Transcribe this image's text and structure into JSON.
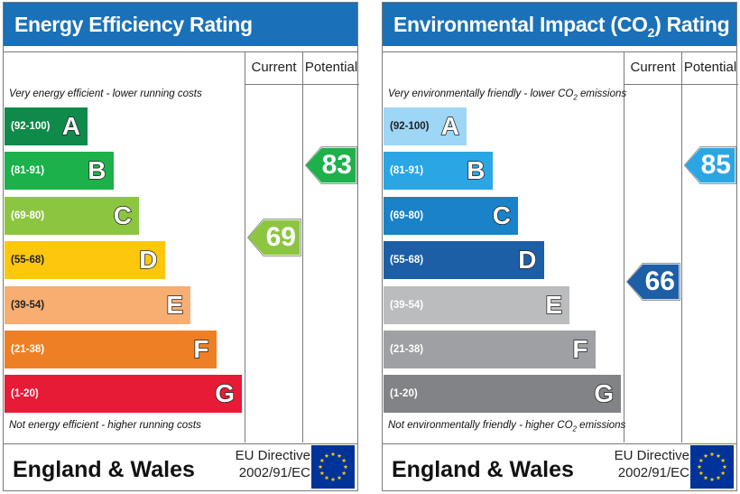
{
  "chart_data": [
    {
      "type": "bar",
      "title": "Energy Efficiency Rating",
      "columns": [
        "Current",
        "Potential"
      ],
      "top_caption": "Very energy efficient - lower running costs",
      "bottom_caption": "Not energy efficient - higher running costs",
      "bands": [
        {
          "range": "(92-100)",
          "letter": "A",
          "color": "#0f8a4b"
        },
        {
          "range": "(81-91)",
          "letter": "B",
          "color": "#1db14b"
        },
        {
          "range": "(69-80)",
          "letter": "C",
          "color": "#8cc540"
        },
        {
          "range": "(55-68)",
          "letter": "D",
          "color": "#fcc70c"
        },
        {
          "range": "(39-54)",
          "letter": "E",
          "color": "#f7ae70"
        },
        {
          "range": "(21-38)",
          "letter": "F",
          "color": "#ef7f24"
        },
        {
          "range": "(1-20)",
          "letter": "G",
          "color": "#e71b35"
        }
      ],
      "current": 69,
      "potential": 83,
      "current_color": "#8cc540",
      "potential_color": "#1db14b"
    },
    {
      "type": "bar",
      "title_main": "Environmental Impact (CO",
      "title_sub": "2",
      "title_end": ") Rating",
      "columns": [
        "Current",
        "Potential"
      ],
      "top_caption_main": "Very environmentally friendly - lower CO",
      "top_caption_sub": "2",
      "top_caption_end": " emissions",
      "bottom_caption_main": "Not environmentally friendly - higher CO",
      "bottom_caption_sub": "2",
      "bottom_caption_end": " emissions",
      "bands": [
        {
          "range": "(92-100)",
          "letter": "A",
          "color": "#9ed6f5"
        },
        {
          "range": "(81-91)",
          "letter": "B",
          "color": "#2ba6e4"
        },
        {
          "range": "(69-80)",
          "letter": "C",
          "color": "#1982c8"
        },
        {
          "range": "(55-68)",
          "letter": "D",
          "color": "#1d5fa6"
        },
        {
          "range": "(39-54)",
          "letter": "E",
          "color": "#bbbcbe"
        },
        {
          "range": "(21-38)",
          "letter": "F",
          "color": "#9fa0a3"
        },
        {
          "range": "(1-20)",
          "letter": "G",
          "color": "#828386"
        }
      ],
      "current": 66,
      "potential": 85,
      "current_color": "#1d5fa6",
      "potential_color": "#2ba6e4"
    }
  ],
  "footer": {
    "country": "England & Wales",
    "directive_line1": "EU Directive",
    "directive_line2": "2002/91/EC"
  },
  "colors": {
    "title_bar": "#1a71b8",
    "eu_blue": "#003399",
    "eu_star": "#ffcc00"
  }
}
